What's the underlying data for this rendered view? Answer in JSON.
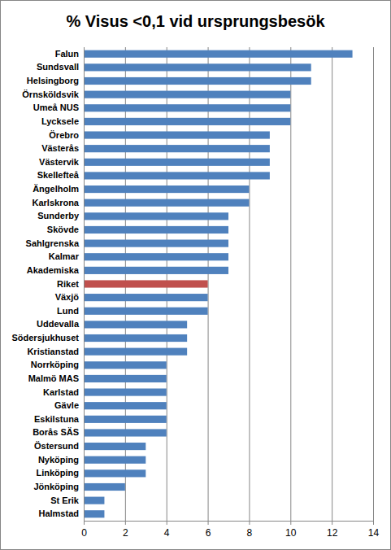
{
  "chart_data": {
    "type": "bar",
    "orientation": "horizontal",
    "title": "% Visus <0,1 vid ursprungsbesök",
    "categories": [
      "Falun",
      "Sundsvall",
      "Helsingborg",
      "Örnsköldsvik",
      "Umeå NUS",
      "Lycksele",
      "Örebro",
      "Västerås",
      "Västervik",
      "Skellefteå",
      "Ängelholm",
      "Karlskrona",
      "Sunderby",
      "Skövde",
      "Sahlgrenska",
      "Kalmar",
      "Akademiska",
      "Riket",
      "Växjö",
      "Lund",
      "Uddevalla",
      "Södersjukhuset",
      "Kristianstad",
      "Norrköping",
      "Malmö MAS",
      "Karlstad",
      "Gävle",
      "Eskilstuna",
      "Borås SÄS",
      "Östersund",
      "Nyköping",
      "Linköping",
      "Jönköping",
      "St Erik",
      "Halmstad"
    ],
    "values": [
      13,
      11,
      11,
      10,
      10,
      10,
      9,
      9,
      9,
      9,
      8,
      8,
      7,
      7,
      7,
      7,
      7,
      6,
      6,
      6,
      5,
      5,
      5,
      4,
      4,
      4,
      4,
      4,
      4,
      3,
      3,
      3,
      2,
      1,
      1
    ],
    "colors": [
      "#4f81bd",
      "#4f81bd",
      "#4f81bd",
      "#4f81bd",
      "#4f81bd",
      "#4f81bd",
      "#4f81bd",
      "#4f81bd",
      "#4f81bd",
      "#4f81bd",
      "#4f81bd",
      "#4f81bd",
      "#4f81bd",
      "#4f81bd",
      "#4f81bd",
      "#4f81bd",
      "#4f81bd",
      "#c0504d",
      "#4f81bd",
      "#4f81bd",
      "#4f81bd",
      "#4f81bd",
      "#4f81bd",
      "#4f81bd",
      "#4f81bd",
      "#4f81bd",
      "#4f81bd",
      "#4f81bd",
      "#4f81bd",
      "#4f81bd",
      "#4f81bd",
      "#4f81bd",
      "#4f81bd",
      "#4f81bd",
      "#4f81bd"
    ],
    "xlim": [
      0,
      14
    ],
    "xticks": [
      0,
      2,
      4,
      6,
      8,
      10,
      12,
      14
    ],
    "grid": true
  }
}
